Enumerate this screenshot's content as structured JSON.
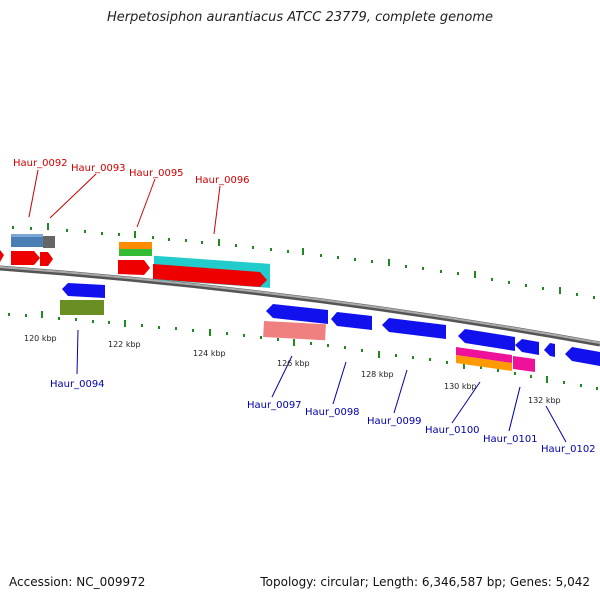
{
  "title": "Herpetosiphon aurantiacus ATCC 23779, complete genome",
  "footer": {
    "accession": "Accession: NC_009972",
    "summary": "Topology: circular; Length: 6,346,587 bp; Genes: 5,042"
  },
  "colors": {
    "forward_label": "#cc0000",
    "reverse_label": "#0000aa",
    "tick": "#1f8a1f",
    "backbone": "#888888"
  },
  "kbp_labels": [
    "120 kbp",
    "122 kbp",
    "124 kbp",
    "126 kbp",
    "128 kbp",
    "130 kbp",
    "132 kbp"
  ],
  "gene_labels": {
    "forward": [
      "Haur_0092",
      "Haur_0093",
      "Haur_0095",
      "Haur_0096"
    ],
    "reverse": [
      "Haur_0094",
      "Haur_0097",
      "Haur_0098",
      "Haur_0099",
      "Haur_0100",
      "Haur_0101",
      "Haur_0102"
    ]
  }
}
